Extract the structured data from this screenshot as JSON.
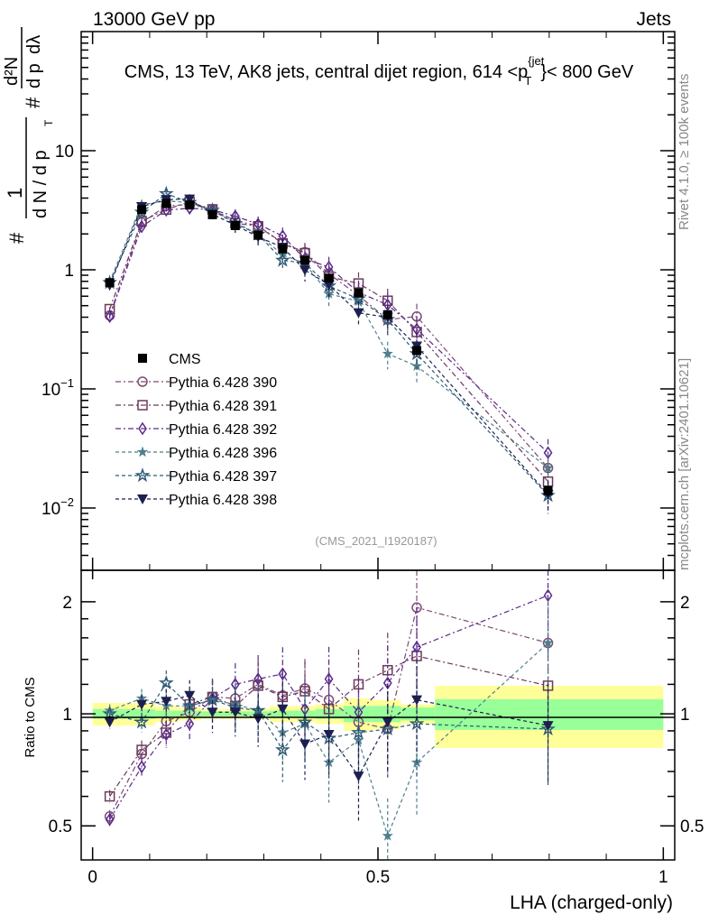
{
  "header": {
    "left": "13000 GeV pp",
    "right": "Jets"
  },
  "side_labels": {
    "rivet": "Rivet 4.1.0, ≥ 100k events",
    "mcplots": "mcplots.cern.ch [arXiv:2401.10621]"
  },
  "analysis_id": "(CMS_2021_I1920187)",
  "chart_data": {
    "type": "line",
    "title": "CMS, 13 TeV, AK8 jets, central dijet region, 614 <p_T^{jet}< 800 GeV",
    "title_parts": {
      "main": "CMS, 13 TeV, AK8 jets, central dijet region, 614 <p",
      "sup": "{jet",
      "sub": "T",
      "end": "}< 800 GeV"
    },
    "ylabel": "1/N dN/dp_T d²N/dp_T dλ",
    "ylabel_parts": {
      "one": "1",
      "hash1": "#",
      "dN": "d N / d p",
      "T": "T",
      "hash2": "#",
      "d2N": "d²N",
      "dpt": "d p",
      "dlam": "dλ"
    },
    "xlabel": "LHA (charged-only)",
    "ratio_ylabel": "Ratio to CMS",
    "xlim": [
      -0.02,
      1.02
    ],
    "ylim_log": [
      0.003,
      100
    ],
    "ratio_ylim_log": [
      0.405,
      2.43
    ],
    "x_ticks": [
      {
        "v": 0,
        "label": "0"
      },
      {
        "v": 0.5,
        "label": "0.5"
      },
      {
        "v": 1,
        "label": "1"
      }
    ],
    "y_ticks": [
      {
        "v": 0.01,
        "base": "10",
        "exp": "−2"
      },
      {
        "v": 0.1,
        "base": "10",
        "exp": "−1"
      },
      {
        "v": 1,
        "base": "1",
        "exp": ""
      },
      {
        "v": 10,
        "base": "10",
        "exp": ""
      }
    ],
    "ratio_ticks": [
      {
        "v": 0.5,
        "label": "0.5"
      },
      {
        "v": 1,
        "label": "1"
      },
      {
        "v": 2,
        "label": "2"
      }
    ],
    "x": [
      0.03,
      0.086,
      0.129,
      0.17,
      0.21,
      0.25,
      0.29,
      0.333,
      0.372,
      0.414,
      0.466,
      0.517,
      0.568,
      0.798
    ],
    "bin_edges": [
      0,
      0.06,
      0.11,
      0.15,
      0.19,
      0.23,
      0.27,
      0.31,
      0.35,
      0.39,
      0.44,
      0.49,
      0.54,
      0.6,
      1.0
    ],
    "cms": {
      "name": "CMS",
      "values": [
        0.78,
        3.2,
        3.6,
        3.5,
        2.9,
        2.35,
        1.95,
        1.5,
        1.2,
        0.85,
        0.64,
        0.42,
        0.21,
        0.014
      ],
      "rel_err": [
        0.04,
        0.03,
        0.03,
        0.03,
        0.02,
        0.02,
        0.02,
        0.03,
        0.03,
        0.04,
        0.05,
        0.06,
        0.06,
        0.1
      ]
    },
    "band_yellow": [
      0.07,
      0.07,
      0.05,
      0.04,
      0.03,
      0.03,
      0.03,
      0.05,
      0.05,
      0.06,
      0.1,
      0.09,
      0.06,
      0.19
    ],
    "band_green": [
      0.03,
      0.03,
      0.02,
      0.02,
      0.015,
      0.015,
      0.015,
      0.02,
      0.02,
      0.03,
      0.05,
      0.05,
      0.04,
      0.095
    ],
    "series": [
      {
        "name": "Pythia 6.428 390",
        "color": "#7b4a73",
        "marker": "circle",
        "dash": "6,3,2,3",
        "ratio": [
          0.53,
          0.78,
          0.955,
          1.01,
          1.11,
          1.1,
          1.2,
          1.12,
          1.17,
          1.09,
          0.95,
          0.91,
          1.93,
          1.55
        ]
      },
      {
        "name": "Pythia 6.428 391",
        "color": "#6b3a5c",
        "marker": "square",
        "dash": "6,3,2,3",
        "ratio": [
          0.6,
          0.8,
          0.89,
          1.06,
          1.11,
          1.05,
          1.19,
          1.11,
          1.15,
          1.03,
          1.2,
          1.31,
          1.43,
          1.19
        ]
      },
      {
        "name": "Pythia 6.428 392",
        "color": "#5b2a8c",
        "marker": "diamond",
        "dash": "6,3,2,3",
        "ratio": [
          0.52,
          0.72,
          0.88,
          0.94,
          1.1,
          1.2,
          1.24,
          1.28,
          1.03,
          1.24,
          1.01,
          1.21,
          1.51,
          2.08
        ]
      },
      {
        "name": "Pythia 6.428 396",
        "color": "#4f7f8c",
        "marker": "star-filled",
        "dash": "4,3",
        "ratio": [
          1.02,
          1.1,
          1.05,
          1.05,
          1.09,
          1.06,
          1.02,
          0.89,
          0.94,
          0.74,
          0.85,
          0.47,
          0.74,
          1.55
        ]
      },
      {
        "name": "Pythia 6.428 397",
        "color": "#2f5a75",
        "marker": "star-open",
        "dash": "4,3",
        "ratio": [
          1.0,
          0.95,
          1.21,
          1.05,
          1.09,
          1.04,
          1.02,
          0.8,
          0.95,
          0.86,
          0.89,
          0.91,
          0.94,
          0.91
        ]
      },
      {
        "name": "Pythia 6.428 398",
        "color": "#1c1f4f",
        "marker": "triangle-down",
        "dash": "4,3",
        "ratio": [
          0.95,
          1.06,
          1.08,
          1.12,
          1.01,
          1.01,
          0.97,
          1.03,
          0.83,
          0.88,
          0.68,
          0.95,
          1.09,
          0.93
        ]
      }
    ],
    "legend_position": "center-left",
    "grid": false
  }
}
